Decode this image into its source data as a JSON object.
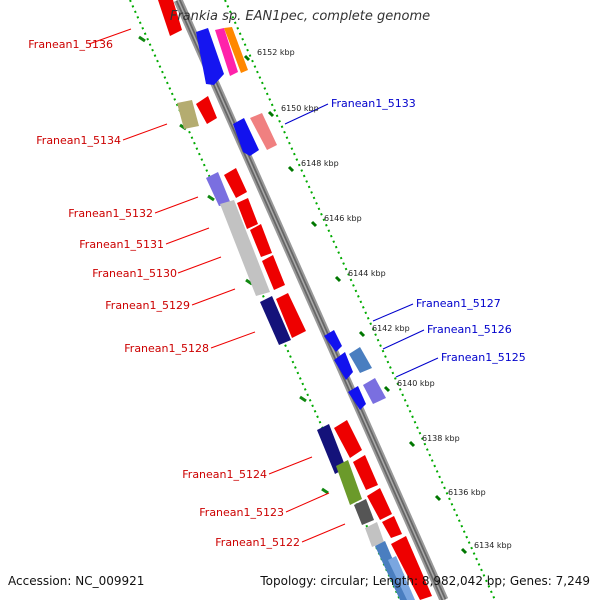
{
  "title": "Frankia sp. EAN1pec, complete genome",
  "footer": {
    "accession": "Accession: NC_009921",
    "summary": "Topology: circular; Length: 8,982,042 bp; Genes: 7,249"
  },
  "colors": {
    "left_label": "#cc0000",
    "right_label": "#0000cc",
    "tick": "#007700",
    "backbone": "#777777"
  },
  "ticks": [
    "6152 kbp",
    "6150 kbp",
    "6148 kbp",
    "6146 kbp",
    "6144 kbp",
    "6142 kbp",
    "6140 kbp",
    "6138 kbp",
    "6136 kbp",
    "6134 kbp"
  ],
  "left_labels": [
    "Franean1_5136",
    "Franean1_5134",
    "Franean1_5132",
    "Franean1_5131",
    "Franean1_5130",
    "Franean1_5129",
    "Franean1_5128",
    "Franean1_5124",
    "Franean1_5123",
    "Franean1_5122"
  ],
  "right_labels": [
    "Franean1_5133",
    "Franean1_5127",
    "Franean1_5126",
    "Franean1_5125"
  ]
}
